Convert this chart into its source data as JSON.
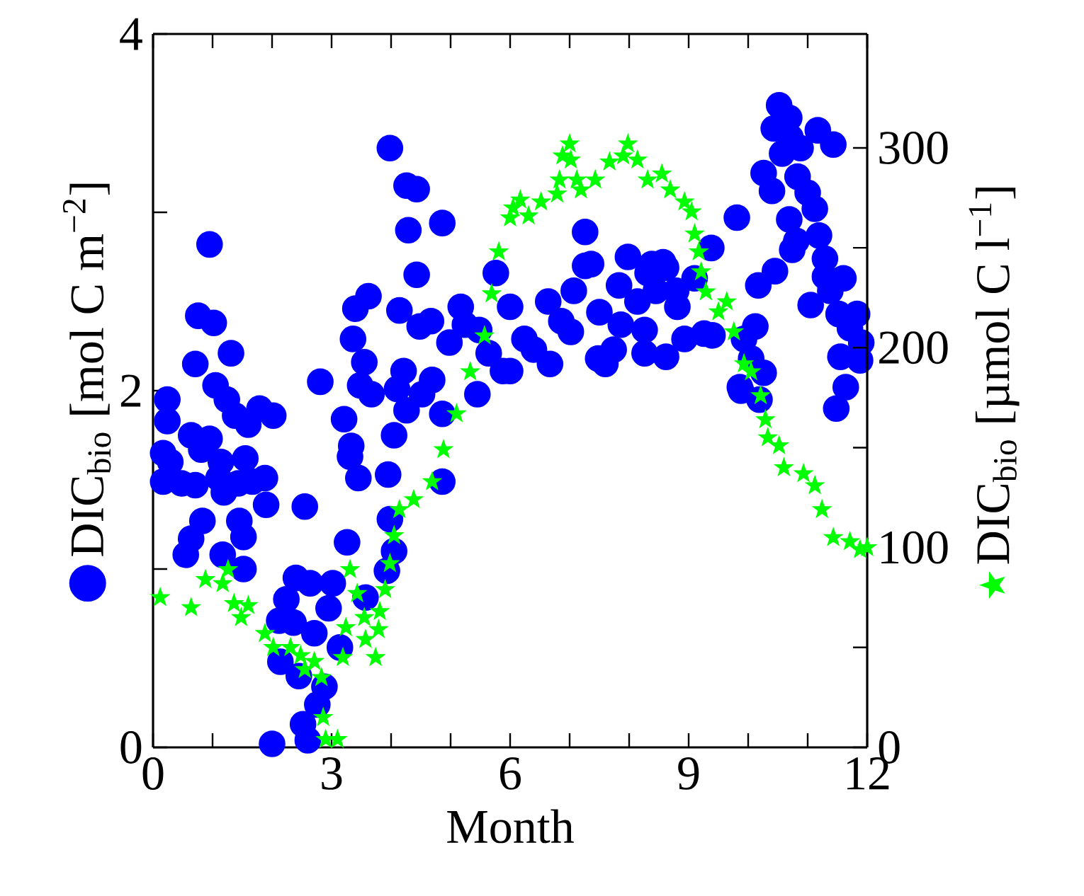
{
  "chart_data": {
    "type": "scatter",
    "xlabel": "Month",
    "ylabel": "DIC$_{bio}$ [mol C m$^{−2}$]",
    "y2label": "DIC$_{bio}$ [µmol C l$^{−1}$]",
    "grid": false,
    "xlim": [
      0,
      12
    ],
    "ylim": [
      0,
      4
    ],
    "y2lim": [
      0,
      357
    ],
    "xticks": [
      0,
      {
        "value": 1,
        "label": null
      },
      {
        "value": 2,
        "label": null
      },
      3,
      {
        "value": 4,
        "label": null
      },
      {
        "value": 5,
        "label": null
      },
      6,
      {
        "value": 7,
        "label": null
      },
      {
        "value": 8,
        "label": null
      },
      9,
      {
        "value": 10,
        "label": null
      },
      {
        "value": 11,
        "label": null
      },
      12
    ],
    "yticks": [
      0,
      {
        "value": 1,
        "label": null
      },
      2,
      {
        "value": 3,
        "label": null
      },
      4
    ],
    "y2ticks": [
      0,
      {
        "value": 50,
        "label": null
      },
      100,
      {
        "value": 150,
        "label": null
      },
      200,
      {
        "value": 250,
        "label": null
      },
      300
    ],
    "series": [
      {
        "color": "#0000ff",
        "marker": "circle",
        "x": [
          0.24,
          0.24,
          0.17,
          0.29,
          0.17,
          0.48,
          0.64,
          0.81,
          0.95,
          0.71,
          0.95,
          0.76,
          1.02,
          0.71,
          1.31,
          1.05,
          1.24,
          1.38,
          1.6,
          1.79,
          2.02,
          1.14,
          1.55,
          1.1,
          1.19,
          1.43,
          1.67,
          1.88,
          1.9,
          0.83,
          0.64,
          0.55,
          1.45,
          1.52,
          1.17,
          1.52,
          2.55,
          2.81,
          2.4,
          2.64,
          3.02,
          2.24,
          2.12,
          2.36,
          2.71,
          2.95,
          2.14,
          2.45,
          2.88,
          2.76,
          2.52,
          2.6,
          2.0,
          3.14,
          3.57,
          3.26,
          3.93,
          4.05,
          3.98,
          3.45,
          3.31,
          3.33,
          3.21,
          3.36,
          3.4,
          3.62,
          3.55,
          3.48,
          3.67,
          3.98,
          4.26,
          4.43,
          4.29,
          4.86,
          4.43,
          4.14,
          4.48,
          4.67,
          3.95,
          4.05,
          4.21,
          4.1,
          4.26,
          4.52,
          4.69,
          4.86,
          4.86,
          4.98,
          5.17,
          5.24,
          5.45,
          5.88,
          5.76,
          6.0,
          5.48,
          5.64,
          6.0,
          6.24,
          6.4,
          6.64,
          6.67,
          6.86,
          7.02,
          7.07,
          7.26,
          7.36,
          7.48,
          7.6,
          7.74,
          7.5,
          7.86,
          7.83,
          7.98,
          8.14,
          8.26,
          8.26,
          8.31,
          8.38,
          8.57,
          8.62,
          8.45,
          8.79,
          8.81,
          8.93,
          9.1,
          9.26,
          9.4,
          9.93,
          9.86,
          10.05,
          8.62,
          7.26,
          10.52,
          10.69,
          10.43,
          10.71,
          11.17,
          11.43,
          10.57,
          10.88,
          10.26,
          10.4,
          10.83,
          11.0,
          11.12,
          10.69,
          10.81,
          10.74,
          11.19,
          11.29,
          11.29,
          11.6,
          11.38,
          9.81,
          9.38,
          10.45,
          10.17,
          11.05,
          11.52,
          11.83,
          11.71,
          11.9,
          11.55,
          11.88,
          11.64,
          11.48,
          10.12,
          10.26,
          9.88,
          10.19
        ],
        "values": [
          1.95,
          1.83,
          1.65,
          1.6,
          1.49,
          1.48,
          1.75,
          1.67,
          1.73,
          1.47,
          2.82,
          2.42,
          2.38,
          2.15,
          2.21,
          2.03,
          1.95,
          1.86,
          1.81,
          1.9,
          1.86,
          1.6,
          1.62,
          1.51,
          1.43,
          1.48,
          1.49,
          1.51,
          1.36,
          1.27,
          1.17,
          1.08,
          1.27,
          1.18,
          1.08,
          1.0,
          1.35,
          2.05,
          0.95,
          0.92,
          0.92,
          0.83,
          0.71,
          0.7,
          0.64,
          0.78,
          0.48,
          0.4,
          0.34,
          0.24,
          0.13,
          0.04,
          0.02,
          0.56,
          0.84,
          1.15,
          0.99,
          1.1,
          1.28,
          1.51,
          1.63,
          1.69,
          1.84,
          2.29,
          2.46,
          2.53,
          2.16,
          2.03,
          1.98,
          3.36,
          3.15,
          3.13,
          2.9,
          2.94,
          2.65,
          2.45,
          2.36,
          2.39,
          1.53,
          1.75,
          2.11,
          2.01,
          1.89,
          1.98,
          2.06,
          1.87,
          1.49,
          2.27,
          2.47,
          2.37,
          1.98,
          2.11,
          2.66,
          2.47,
          2.34,
          2.21,
          2.11,
          2.29,
          2.23,
          2.5,
          2.15,
          2.39,
          2.33,
          2.56,
          2.7,
          2.71,
          2.18,
          2.15,
          2.23,
          2.44,
          2.37,
          2.59,
          2.75,
          2.5,
          2.21,
          2.34,
          2.66,
          2.71,
          2.72,
          2.19,
          2.56,
          2.56,
          2.47,
          2.29,
          2.63,
          2.32,
          2.31,
          2.29,
          2.02,
          2.18,
          2.69,
          2.89,
          3.6,
          3.53,
          3.47,
          3.42,
          3.46,
          3.38,
          3.33,
          3.36,
          3.22,
          3.12,
          3.2,
          3.11,
          3.02,
          2.96,
          2.84,
          2.79,
          2.87,
          2.74,
          2.64,
          2.63,
          2.56,
          2.97,
          2.8,
          2.67,
          2.59,
          2.48,
          2.43,
          2.43,
          2.35,
          2.27,
          2.19,
          2.17,
          2.02,
          1.9,
          2.36,
          2.1,
          2.0,
          1.95
        ]
      },
      {
        "color": "#00ff00",
        "marker": "star",
        "axis": "y2",
        "x": [
          0.12,
          0.64,
          0.88,
          1.17,
          1.26,
          1.36,
          1.48,
          1.6,
          1.88,
          2.02,
          2.31,
          2.48,
          2.55,
          2.71,
          2.83,
          2.86,
          2.9,
          3.1,
          3.19,
          3.24,
          3.31,
          3.43,
          3.55,
          3.57,
          3.74,
          3.79,
          3.81,
          3.9,
          3.98,
          4.05,
          4.14,
          4.38,
          4.69,
          4.88,
          5.1,
          5.33,
          5.57,
          5.69,
          5.81,
          6.0,
          6.05,
          6.17,
          6.31,
          6.52,
          6.79,
          6.83,
          6.88,
          7.0,
          7.02,
          7.12,
          7.19,
          7.43,
          7.67,
          7.9,
          7.98,
          8.14,
          8.31,
          8.55,
          8.69,
          8.93,
          9.05,
          9.1,
          9.17,
          9.21,
          9.29,
          9.5,
          9.64,
          9.76,
          9.93,
          10.05,
          10.21,
          10.29,
          10.33,
          10.52,
          10.6,
          10.93,
          11.12,
          11.24,
          11.43,
          11.71,
          11.88,
          12.0
        ],
        "values": [
          75,
          70,
          84,
          82,
          89,
          72,
          65,
          71,
          57,
          50,
          50,
          46,
          39,
          43,
          35,
          15,
          4,
          4,
          45,
          60,
          89,
          77,
          65,
          54,
          45,
          59,
          68,
          79,
          92,
          106,
          119,
          124,
          133,
          149,
          167,
          188,
          206,
          227,
          248,
          265,
          270,
          274,
          266,
          273,
          277,
          284,
          296,
          302,
          294,
          284,
          279,
          284,
          293,
          296,
          302,
          294,
          284,
          287,
          279,
          273,
          268,
          257,
          248,
          238,
          228,
          218,
          223,
          208,
          192,
          188,
          176,
          164,
          155,
          151,
          140,
          137,
          131,
          119,
          105,
          103,
          99,
          100
        ]
      }
    ]
  }
}
